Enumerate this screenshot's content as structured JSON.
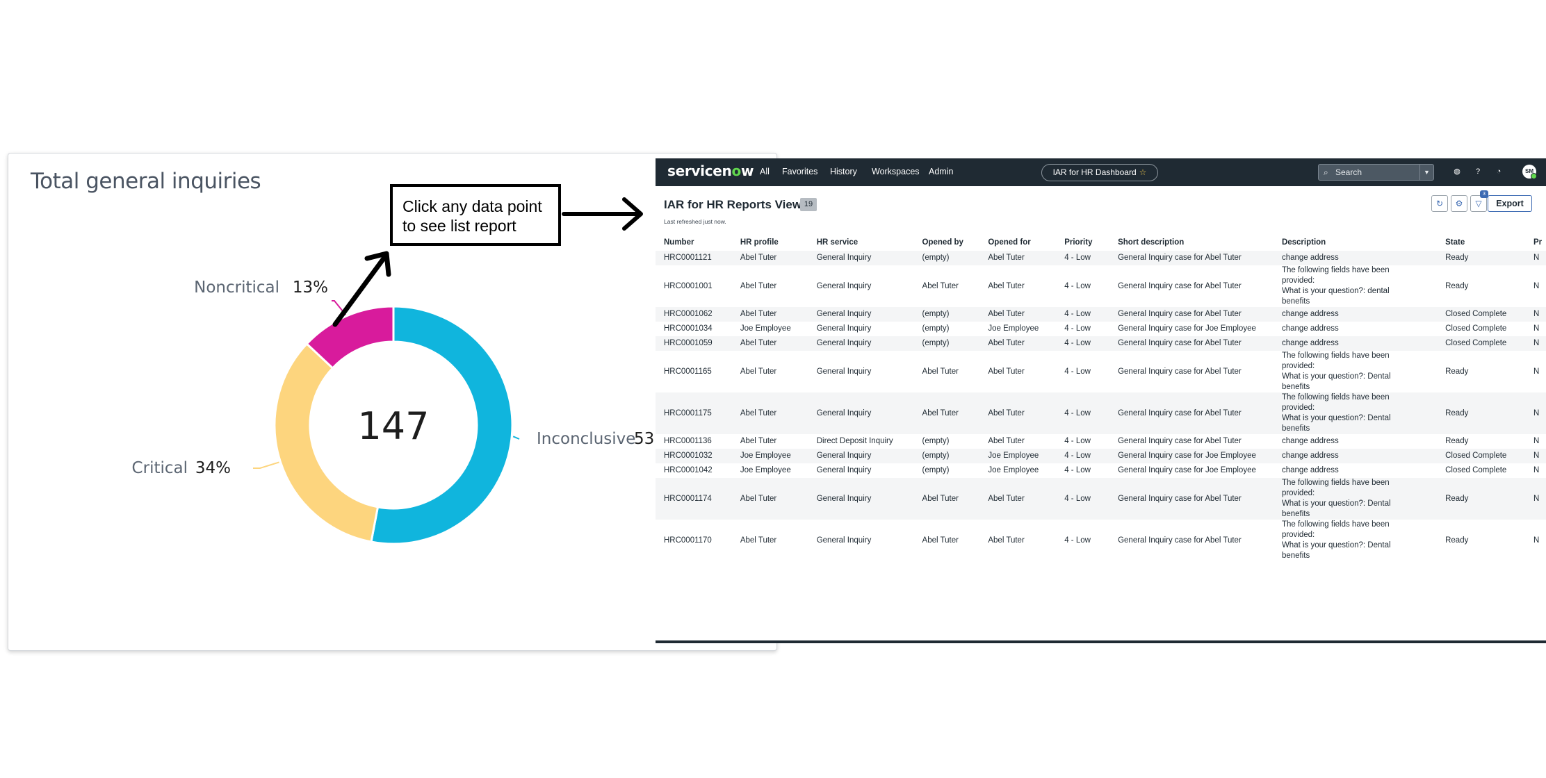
{
  "dashboard": {
    "title": "Total general inquiries",
    "center_value": "147",
    "colors": {
      "inconclusive": "#10b5dd",
      "critical": "#fdd57e",
      "noncritical": "#d81b9c"
    }
  },
  "chart_data": {
    "type": "pie",
    "title": "Total general inquiries",
    "total": 147,
    "slices": [
      {
        "label": "Inconclusive",
        "display": "53",
        "value": 53
      },
      {
        "label": "Critical",
        "display": "34%",
        "value": 34
      },
      {
        "label": "Noncritical",
        "display": "13%",
        "value": 13
      }
    ]
  },
  "callout": {
    "text": "Click any data point to see list report"
  },
  "servicenow": {
    "logo": {
      "main": "servicen",
      "o": "o",
      "end": "w"
    },
    "nav": [
      "All",
      "Favorites",
      "History",
      "Workspaces",
      "Admin"
    ],
    "dashboard_pill": "IAR for HR Dashboard",
    "search_placeholder": "Search",
    "avatar": "SM",
    "title": "IAR for HR Reports View",
    "count": "19",
    "refreshed": "Last refreshed just now.",
    "filter_badge": "3",
    "export_label": "Export",
    "columns": [
      "Number",
      "HR profile",
      "HR service",
      "Opened by",
      "Opened for",
      "Priority",
      "Short description",
      "Description",
      "State",
      "Pr"
    ],
    "rows": [
      [
        "HRC0001121",
        "Abel Tuter",
        "General Inquiry",
        "(empty)",
        "Abel Tuter",
        "4 - Low",
        "General Inquiry case for Abel Tuter",
        " change address",
        "Ready",
        "N"
      ],
      [
        "HRC0001001",
        "Abel Tuter",
        "General Inquiry",
        "Abel Tuter",
        "Abel Tuter",
        "4 - Low",
        "General Inquiry case for Abel Tuter",
        "The following fields have been\nprovided:\nWhat is your question?: dental\nbenefits",
        "Ready",
        "N"
      ],
      [
        "HRC0001062",
        "Abel Tuter",
        "General Inquiry",
        "(empty)",
        "Abel Tuter",
        "4 - Low",
        "General Inquiry case for Abel Tuter",
        " change address",
        "Closed Complete",
        "N"
      ],
      [
        "HRC0001034",
        "Joe Employee",
        "General Inquiry",
        "(empty)",
        "Joe Employee",
        "4 - Low",
        "General Inquiry case for Joe Employee",
        " change address",
        "Closed Complete",
        "N"
      ],
      [
        "HRC0001059",
        "Abel Tuter",
        "General Inquiry",
        "(empty)",
        "Abel Tuter",
        "4 - Low",
        "General Inquiry case for Abel Tuter",
        " change address",
        "Closed Complete",
        "N"
      ],
      [
        "HRC0001165",
        "Abel Tuter",
        "General Inquiry",
        "Abel Tuter",
        "Abel Tuter",
        "4 - Low",
        "General Inquiry case for Abel Tuter",
        "The following fields have been\nprovided:\nWhat is your question?: Dental\nbenefits",
        "Ready",
        "N"
      ],
      [
        "HRC0001175",
        "Abel Tuter",
        "General Inquiry",
        "Abel Tuter",
        "Abel Tuter",
        "4 - Low",
        "General Inquiry case for Abel Tuter",
        "The following fields have been\nprovided:\nWhat is your question?: Dental\nbenefits",
        "Ready",
        "N"
      ],
      [
        "HRC0001136",
        "Abel Tuter",
        "Direct Deposit Inquiry",
        "(empty)",
        "Abel Tuter",
        "4 - Low",
        "General Inquiry case for Abel Tuter",
        " change address",
        "Ready",
        "N"
      ],
      [
        "HRC0001032",
        "Joe Employee",
        "General Inquiry",
        "(empty)",
        "Joe Employee",
        "4 - Low",
        "General Inquiry case for Joe Employee",
        " change address",
        "Closed Complete",
        "N"
      ],
      [
        "HRC0001042",
        "Joe Employee",
        "General Inquiry",
        "(empty)",
        "Joe Employee",
        "4 - Low",
        "General Inquiry case for Joe Employee",
        " change address",
        "Closed Complete",
        "N"
      ],
      [
        "HRC0001174",
        "Abel Tuter",
        "General Inquiry",
        "Abel Tuter",
        "Abel Tuter",
        "4 - Low",
        "General Inquiry case for Abel Tuter",
        "The following fields have been\nprovided:\nWhat is your question?: Dental\nbenefits",
        "Ready",
        "N"
      ],
      [
        "HRC0001170",
        "Abel Tuter",
        "General Inquiry",
        "Abel Tuter",
        "Abel Tuter",
        "4 - Low",
        "General Inquiry case for Abel Tuter",
        "The following fields have been\nprovided:\nWhat is your question?: Dental\nbenefits",
        "Ready",
        "N"
      ]
    ]
  }
}
